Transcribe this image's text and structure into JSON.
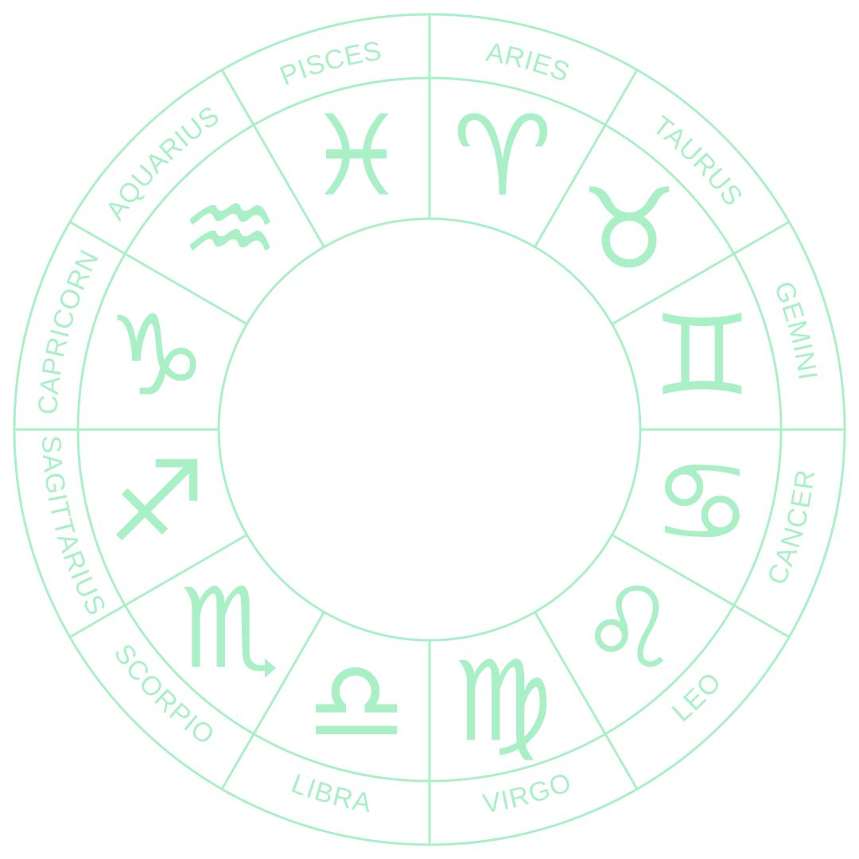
{
  "theme": {
    "color": "#aaf0c6",
    "background": "#ffffff"
  },
  "wheel": {
    "signs": [
      {
        "name": "ARIES",
        "glyph": "♈",
        "icon": "aries-icon"
      },
      {
        "name": "TAURUS",
        "glyph": "♉",
        "icon": "taurus-icon"
      },
      {
        "name": "GEMINI",
        "glyph": "♊",
        "icon": "gemini-icon"
      },
      {
        "name": "CANCER",
        "glyph": "♋",
        "icon": "cancer-icon"
      },
      {
        "name": "LEO",
        "glyph": "♌",
        "icon": "leo-icon"
      },
      {
        "name": "VIRGO",
        "glyph": "♍",
        "icon": "virgo-icon"
      },
      {
        "name": "LIBRA",
        "glyph": "♎",
        "icon": "libra-icon"
      },
      {
        "name": "SCORPIO",
        "glyph": "♏",
        "icon": "scorpio-icon"
      },
      {
        "name": "SAGITTARIUS",
        "glyph": "♐",
        "icon": "sagittarius-icon"
      },
      {
        "name": "CAPRICORN",
        "glyph": "♑",
        "icon": "capricorn-icon"
      },
      {
        "name": "AQUARIUS",
        "glyph": "♒",
        "icon": "aquarius-icon"
      },
      {
        "name": "PISCES",
        "glyph": "♓",
        "icon": "pisces-icon"
      }
    ]
  }
}
